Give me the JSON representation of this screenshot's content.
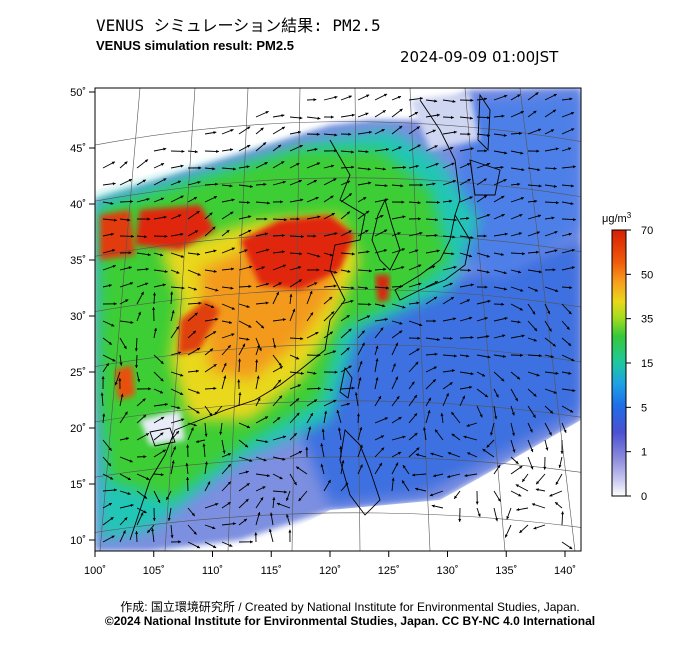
{
  "header": {
    "title_jp": "VENUS シミュレーション結果: PM2.5",
    "title_en": "VENUS simulation result: PM2.5",
    "timestamp": "2024-09-09 01:00JST"
  },
  "map": {
    "lon_ticks": [
      "100˚",
      "105˚",
      "110˚",
      "115˚",
      "120˚",
      "125˚",
      "130˚",
      "135˚",
      "140˚"
    ],
    "lat_ticks": [
      "50˚",
      "45˚",
      "40˚",
      "35˚",
      "30˚",
      "25˚",
      "20˚",
      "15˚",
      "10˚"
    ],
    "lon_range": [
      100,
      142
    ],
    "lat_range": [
      9,
      51
    ],
    "layers": [
      "PM2.5 concentration shading",
      "wind vectors",
      "coastlines",
      "lat-lon graticule"
    ]
  },
  "colorbar": {
    "unit": "μg/m",
    "unit_sup": "3",
    "tick_labels": [
      "70",
      "50",
      "35",
      "15",
      "5",
      "1",
      "0"
    ],
    "colors": [
      "#d81e05",
      "#f05a0a",
      "#f7a21e",
      "#e9d81a",
      "#a4dc1e",
      "#36c83c",
      "#1ec8a0",
      "#1ea0e6",
      "#1e6ee6",
      "#4b50d2",
      "#8c8cdc",
      "#c8c8f0",
      "#ffffff"
    ]
  },
  "footer": {
    "credit_jp": "作成: 国立環境研究所 / Created by National Institute for Environmental Studies, Japan.",
    "copyright": "©2024 National Institute for Environmental Studies, Japan. CC BY-NC 4.0 International"
  }
}
